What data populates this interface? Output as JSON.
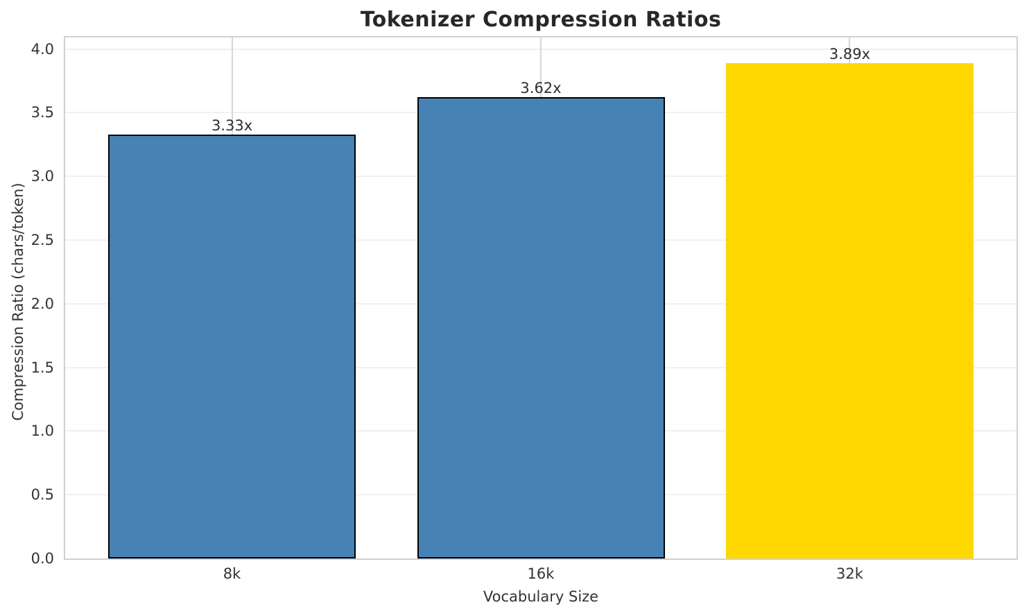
{
  "chart_data": {
    "type": "bar",
    "title": "Tokenizer Compression Ratios",
    "xlabel": "Vocabulary Size",
    "ylabel": "Compression Ratio (chars/token)",
    "categories": [
      "8k",
      "16k",
      "32k"
    ],
    "values": [
      3.33,
      3.62,
      3.89
    ],
    "bar_labels": [
      "3.33x",
      "3.62x",
      "3.89x"
    ],
    "bar_colors": [
      "#4682B4",
      "#4682B4",
      "#FFD700"
    ],
    "bar_edge_colors": [
      "#000000",
      "#000000",
      "none"
    ],
    "ylim": [
      0,
      4.09
    ],
    "yticks": [
      "0.0",
      "0.5",
      "1.0",
      "1.5",
      "2.0",
      "2.5",
      "3.0",
      "3.5",
      "4.0"
    ],
    "grid": "on",
    "legend_position": "none",
    "colors": {
      "series": "#4682B4",
      "highlight": "#FFD700",
      "spine": "#d0d0d0",
      "hgrid": "#f0f0f0",
      "vgrid": "#d6d6d6",
      "title_text": "#282828",
      "tick_text": "#333333"
    }
  }
}
